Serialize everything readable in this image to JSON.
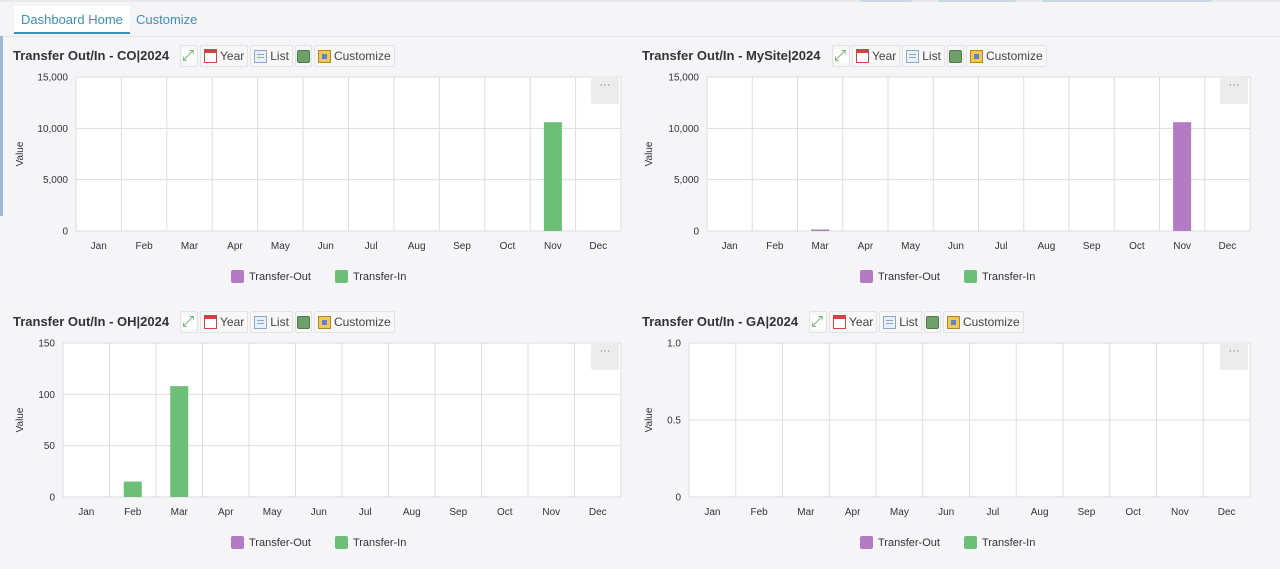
{
  "tabs": [
    {
      "label": "Dashboard Home",
      "active": true
    },
    {
      "label": "Customize",
      "active": false
    }
  ],
  "toolbar": {
    "year_label": "Year",
    "list_label": "List",
    "customize_label": "Customize"
  },
  "menu_label": "···",
  "colors": {
    "accent": "#3a8fb6",
    "transfer_out": "#b27bc4",
    "transfer_in": "#6dbf78",
    "grid": "#dddddd"
  },
  "chart_data": [
    {
      "type": "bar",
      "title": "Transfer Out/In - CO|2024",
      "ylabel": "Value",
      "categories": [
        "Jan",
        "Feb",
        "Mar",
        "Apr",
        "May",
        "Jun",
        "Jul",
        "Aug",
        "Sep",
        "Oct",
        "Nov",
        "Dec"
      ],
      "y_ticks": [
        "0",
        "5,000",
        "10,000",
        "15,000"
      ],
      "ylim": [
        0,
        15000
      ],
      "series": [
        {
          "name": "Transfer-Out",
          "values": [
            0,
            0,
            0,
            0,
            0,
            0,
            0,
            0,
            0,
            0,
            0,
            0
          ]
        },
        {
          "name": "Transfer-In",
          "values": [
            0,
            0,
            0,
            0,
            0,
            0,
            0,
            0,
            0,
            0,
            10600,
            0
          ]
        }
      ],
      "grid": true,
      "legend": "bottom"
    },
    {
      "type": "bar",
      "title": "Transfer Out/In - MySite|2024",
      "ylabel": "Value",
      "categories": [
        "Jan",
        "Feb",
        "Mar",
        "Apr",
        "May",
        "Jun",
        "Jul",
        "Aug",
        "Sep",
        "Oct",
        "Nov",
        "Dec"
      ],
      "y_ticks": [
        "0",
        "5,000",
        "10,000",
        "15,000"
      ],
      "ylim": [
        0,
        15000
      ],
      "series": [
        {
          "name": "Transfer-Out",
          "values": [
            0,
            0,
            80,
            0,
            0,
            0,
            0,
            0,
            0,
            0,
            10600,
            0
          ]
        },
        {
          "name": "Transfer-In",
          "values": [
            0,
            0,
            0,
            0,
            0,
            0,
            0,
            0,
            0,
            0,
            0,
            0
          ]
        }
      ],
      "grid": true,
      "legend": "bottom"
    },
    {
      "type": "bar",
      "title": "Transfer Out/In - OH|2024",
      "ylabel": "Value",
      "categories": [
        "Jan",
        "Feb",
        "Mar",
        "Apr",
        "May",
        "Jun",
        "Jul",
        "Aug",
        "Sep",
        "Oct",
        "Nov",
        "Dec"
      ],
      "y_ticks": [
        "0",
        "50",
        "100",
        "150"
      ],
      "ylim": [
        0,
        150
      ],
      "series": [
        {
          "name": "Transfer-Out",
          "values": [
            0,
            0,
            0,
            0,
            0,
            0,
            0,
            0,
            0,
            0,
            0,
            0
          ]
        },
        {
          "name": "Transfer-In",
          "values": [
            0,
            15,
            108,
            0,
            0,
            0,
            0,
            0,
            0,
            0,
            0,
            0
          ]
        }
      ],
      "grid": true,
      "legend": "bottom"
    },
    {
      "type": "bar",
      "title": "Transfer Out/In - GA|2024",
      "ylabel": "Value",
      "categories": [
        "Jan",
        "Feb",
        "Mar",
        "Apr",
        "May",
        "Jun",
        "Jul",
        "Aug",
        "Sep",
        "Oct",
        "Nov",
        "Dec"
      ],
      "y_ticks": [
        "0",
        "0.5",
        "1.0"
      ],
      "ylim": [
        0,
        1
      ],
      "series": [
        {
          "name": "Transfer-Out",
          "values": [
            0,
            0,
            0,
            0,
            0,
            0,
            0,
            0,
            0,
            0,
            0,
            0
          ]
        },
        {
          "name": "Transfer-In",
          "values": [
            0,
            0,
            0,
            0,
            0,
            0,
            0,
            0,
            0,
            0,
            0,
            0
          ]
        }
      ],
      "grid": true,
      "legend": "bottom"
    }
  ]
}
